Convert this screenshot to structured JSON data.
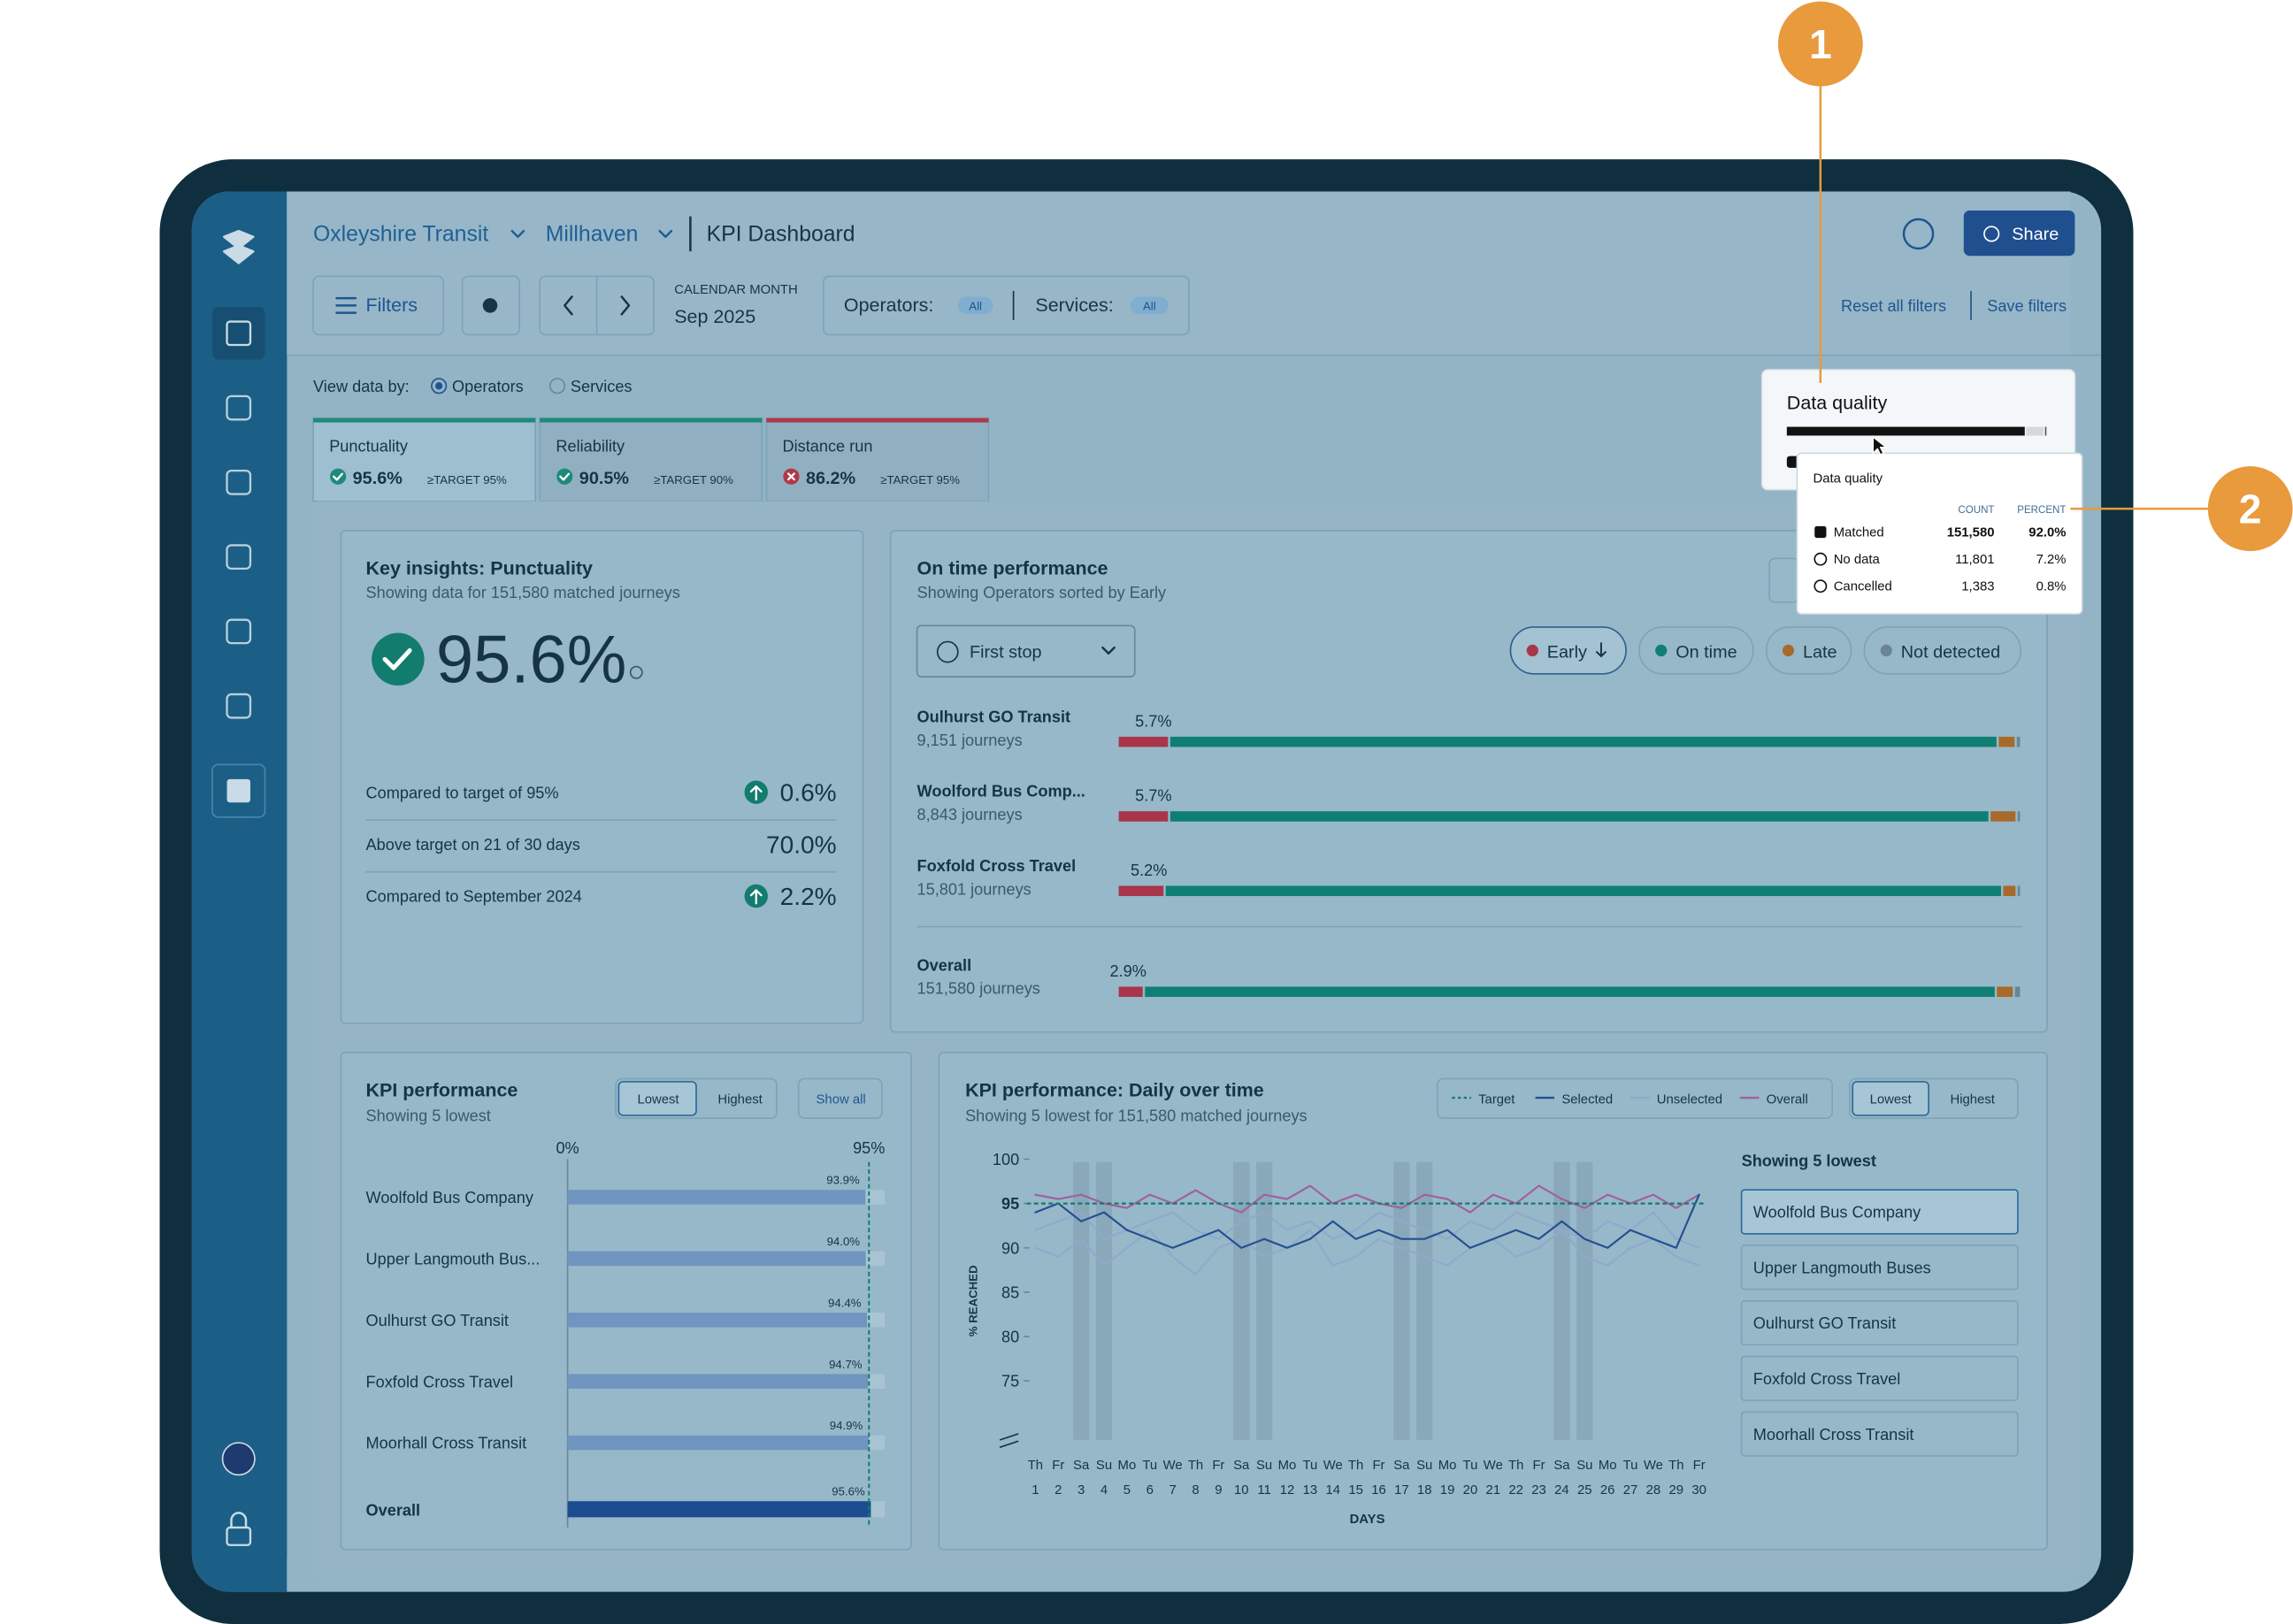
{
  "callouts": [
    "1",
    "2"
  ],
  "header": {
    "org": "Oxleyshire Transit",
    "region": "Millhaven",
    "page": "KPI Dashboard",
    "share": "Share"
  },
  "filters": {
    "filters": "Filters",
    "period_label": "CALENDAR MONTH",
    "period": "Sep 2025",
    "operators": "Operators:",
    "operators_value": "All",
    "services": "Services:",
    "services_value": "All",
    "reset": "Reset all filters",
    "save": "Save filters"
  },
  "view_by": {
    "label": "View data by:",
    "options": [
      "Operators",
      "Services"
    ]
  },
  "tabs": [
    {
      "name": "Punctuality",
      "value": "95.6%",
      "target": "≥TARGET 95%",
      "color": "#1f8a7a",
      "met": true
    },
    {
      "name": "Reliability",
      "value": "90.5%",
      "target": "≥TARGET 90%",
      "color": "#1f8a7a",
      "met": true
    },
    {
      "name": "Distance run",
      "value": "86.2%",
      "target": "≥TARGET 95%",
      "color": "#b0384a",
      "met": false
    }
  ],
  "data_quality": {
    "title": "Data quality",
    "bar_values": [
      92.0,
      7.2,
      0.8
    ],
    "tooltip": {
      "title": "Data quality",
      "columns": [
        "COUNT",
        "PERCENT"
      ],
      "rows": [
        {
          "label": "Matched",
          "count": "151,580",
          "percent": "92.0%"
        },
        {
          "label": "No data",
          "count": "11,801",
          "percent": "7.2%"
        },
        {
          "label": "Cancelled",
          "count": "1,383",
          "percent": "0.8%"
        }
      ]
    }
  },
  "insights": {
    "title": "Key insights: Punctuality",
    "subtitle": "Showing data for 151,580 matched journeys",
    "value": "95.6%",
    "rows": [
      {
        "label": "Compared to target of 95%",
        "value": "0.6%",
        "up": true
      },
      {
        "label": "Above target on 21 of 30 days",
        "value": "70.0%",
        "up": false
      },
      {
        "label": "Compared to September 2024",
        "value": "2.2%",
        "up": true
      }
    ]
  },
  "on_time": {
    "title": "On time performance",
    "subtitle": "Showing Operators sorted by Early",
    "select": "First stop",
    "legend": [
      {
        "name": "Early",
        "color": "#a8354a"
      },
      {
        "name": "On time",
        "color": "#0f7f73"
      },
      {
        "name": "Late",
        "color": "#a86a2a"
      },
      {
        "name": "Not detected",
        "color": "#6b8594"
      }
    ],
    "rows": [
      {
        "name": "Oulhurst GO Transit",
        "journeys": "9,151 journeys",
        "label": "5.7%",
        "segments": [
          5.7,
          91.7,
          2.0,
          0.6
        ]
      },
      {
        "name": "Woolford Bus Comp...",
        "journeys": "8,843 journeys",
        "label": "5.7%",
        "segments": [
          5.7,
          90.8,
          3.0,
          0.5
        ]
      },
      {
        "name": "Foxfold Cross Travel",
        "journeys": "15,801 journeys",
        "label": "5.2%",
        "segments": [
          5.2,
          92.7,
          1.6,
          0.5
        ]
      }
    ],
    "overall": {
      "name": "Overall",
      "journeys": "151,580 journeys",
      "label": "2.9%",
      "segments": [
        2.9,
        94.3,
        2.0,
        0.8
      ]
    }
  },
  "kpi_perf": {
    "title": "KPI performance",
    "subtitle": "Showing 5 lowest",
    "buttons": [
      "Lowest",
      "Highest"
    ],
    "show_all": "Show all",
    "xlim": [
      0,
      100
    ],
    "xticks": [
      {
        "value": 0,
        "label": "0%"
      },
      {
        "value": 95,
        "label": "95%"
      }
    ],
    "rows": [
      {
        "name": "Woolfold Bus Company",
        "value": 93.9,
        "label": "93.9%"
      },
      {
        "name": "Upper Langmouth Bus...",
        "value": 94.0,
        "label": "94.0%"
      },
      {
        "name": "Oulhurst GO Transit",
        "value": 94.4,
        "label": "94.4%"
      },
      {
        "name": "Foxfold Cross Travel",
        "value": 94.7,
        "label": "94.7%"
      },
      {
        "name": "Moorhall Cross Transit",
        "value": 94.9,
        "label": "94.9%"
      }
    ],
    "overall": {
      "name": "Overall",
      "value": 95.6,
      "label": "95.6%"
    }
  },
  "daily": {
    "type": "line",
    "title": "KPI performance: Daily over time",
    "subtitle": "Showing 5 lowest for 151,580 matched journeys",
    "legend": [
      "Target",
      "Selected",
      "Unselected",
      "Overall"
    ],
    "buttons": [
      "Lowest",
      "Highest"
    ],
    "ylabel": "% REACHED",
    "xlabel": "DAYS",
    "ylim": [
      70,
      100
    ],
    "yticks": [
      75,
      80,
      85,
      90,
      95,
      100
    ],
    "target": 95,
    "xlim": [
      1,
      30
    ],
    "x": [
      1,
      2,
      3,
      4,
      5,
      6,
      7,
      8,
      9,
      10,
      11,
      12,
      13,
      14,
      15,
      16,
      17,
      18,
      19,
      20,
      21,
      22,
      23,
      24,
      25,
      26,
      27,
      28,
      29,
      30
    ],
    "weekdays": [
      "Th",
      "Fr",
      "Sa",
      "Su",
      "Mo",
      "Tu",
      "We",
      "Th",
      "Fr",
      "Sa",
      "Su",
      "Mo",
      "Tu",
      "We",
      "Th",
      "Fr",
      "Sa",
      "Su",
      "Mo",
      "Tu",
      "We",
      "Th",
      "Fr",
      "Sa",
      "Su",
      "Mo",
      "Tu",
      "We",
      "Th",
      "Fr"
    ],
    "series": [
      {
        "name": "Unselected",
        "color": "#8fa9cc",
        "values": [
          92,
          93,
          94,
          91,
          92,
          93,
          94,
          92,
          91,
          93,
          94,
          92,
          93,
          91,
          92,
          94,
          93,
          92,
          91,
          93,
          92,
          94,
          93,
          92,
          91,
          93,
          92,
          94,
          91,
          90
        ]
      },
      {
        "name": "Unselected",
        "color": "#8fa9cc",
        "values": [
          90,
          89,
          91,
          88,
          90,
          92,
          89,
          87,
          90,
          91,
          89,
          90,
          92,
          88,
          89,
          91,
          90,
          89,
          88,
          90,
          91,
          89,
          90,
          92,
          89,
          88,
          90,
          91,
          89,
          88
        ]
      },
      {
        "name": "Overall",
        "color": "#a0609e",
        "values": [
          96,
          95.5,
          96,
          95,
          94.5,
          96,
          95,
          96.5,
          95,
          94,
          96,
          95.5,
          97,
          95,
          96,
          95,
          94.5,
          96,
          95.5,
          94,
          96,
          95,
          97,
          95.5,
          94.5,
          96,
          95,
          96,
          94.5,
          96
        ]
      },
      {
        "name": "Selected",
        "color": "#244f92",
        "values": [
          94,
          95,
          93,
          94,
          92,
          91,
          90,
          91,
          92,
          90,
          91,
          90,
          91,
          93,
          91,
          92,
          91,
          91,
          92,
          90,
          91,
          92,
          91,
          93,
          91,
          90,
          92,
          91,
          90,
          96
        ]
      }
    ],
    "list_title": "Showing 5 lowest",
    "list": [
      "Woolfold Bus Company",
      "Upper Langmouth Buses",
      "Oulhurst GO Transit",
      "Foxfold Cross Travel",
      "Moorhall Cross Transit"
    ]
  }
}
